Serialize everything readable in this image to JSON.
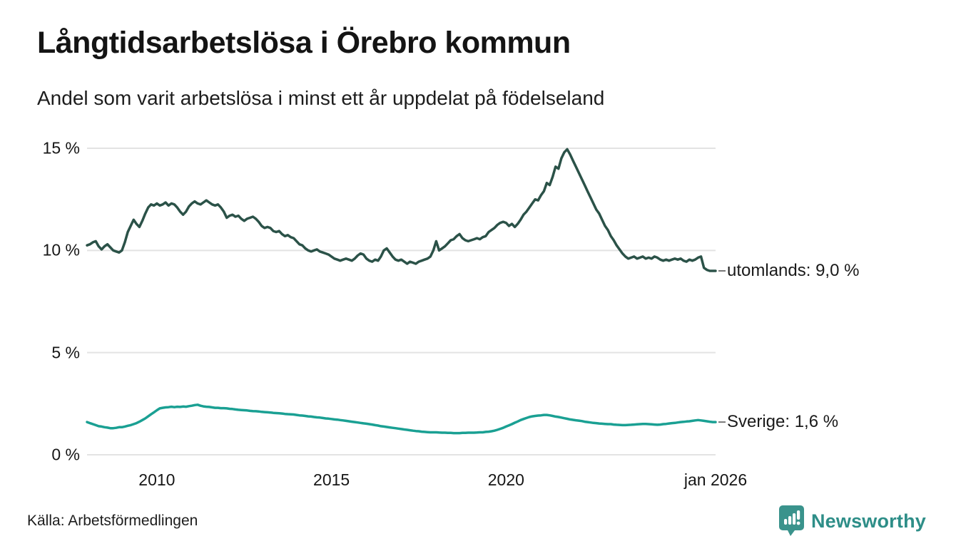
{
  "header": {
    "title": "Långtidsarbetslösa i Örebro kommun",
    "subtitle": "Andel som varit arbetslösa i minst ett år uppdelat på födelseland"
  },
  "footer": {
    "source": "Källa: Arbetsförmedlingen",
    "brand": "Newsworthy"
  },
  "colors": {
    "utomlands_line": "#2b5248",
    "sverige_line": "#1aa093",
    "grid": "#e3e3e3",
    "leader_dash": "#777777",
    "brand_teal": "#2e8e88",
    "logo_teal": "#3a938c"
  },
  "chart_data": {
    "type": "line",
    "title": "Långtidsarbetslösa i Örebro kommun",
    "subtitle": "Andel som varit arbetslösa i minst ett år uppdelat på födelseland",
    "xlabel": "",
    "ylabel": "",
    "x_unit": "year (monthly points)",
    "x_start_year": 2008,
    "x_end_year": 2026,
    "x_step_months": 1,
    "ylim": [
      0,
      15
    ],
    "grid": true,
    "legend_position": "right-end-labels",
    "yticks": [
      {
        "value": 15,
        "label": "15 %"
      },
      {
        "value": 10,
        "label": "10 %"
      },
      {
        "value": 5,
        "label": "5 %"
      },
      {
        "value": 0,
        "label": "0 %"
      }
    ],
    "xticks": [
      {
        "year": 2010,
        "label": "2010"
      },
      {
        "year": 2015,
        "label": "2015"
      },
      {
        "year": 2020,
        "label": "2020"
      },
      {
        "year": 2026,
        "label": "jan 2026"
      }
    ],
    "series": [
      {
        "name": "utomlands",
        "end_label": "utomlands: 9,0 %",
        "last_value": 9.0,
        "color_key": "utomlands_line",
        "values": [
          10.25,
          10.3,
          10.4,
          10.45,
          10.2,
          10.05,
          10.2,
          10.3,
          10.15,
          10.0,
          9.95,
          9.9,
          10.0,
          10.4,
          10.9,
          11.2,
          11.5,
          11.3,
          11.15,
          11.45,
          11.8,
          12.1,
          12.25,
          12.2,
          12.3,
          12.2,
          12.25,
          12.35,
          12.2,
          12.3,
          12.25,
          12.1,
          11.9,
          11.75,
          11.9,
          12.15,
          12.3,
          12.4,
          12.3,
          12.25,
          12.35,
          12.45,
          12.35,
          12.25,
          12.2,
          12.25,
          12.1,
          11.9,
          11.6,
          11.7,
          11.75,
          11.65,
          11.7,
          11.55,
          11.45,
          11.55,
          11.6,
          11.65,
          11.55,
          11.4,
          11.2,
          11.1,
          11.15,
          11.1,
          10.95,
          10.9,
          10.95,
          10.8,
          10.7,
          10.75,
          10.65,
          10.6,
          10.45,
          10.3,
          10.25,
          10.1,
          10.0,
          9.95,
          10.0,
          10.05,
          9.95,
          9.9,
          9.85,
          9.8,
          9.7,
          9.6,
          9.55,
          9.5,
          9.55,
          9.6,
          9.55,
          9.5,
          9.6,
          9.75,
          9.85,
          9.8,
          9.6,
          9.5,
          9.45,
          9.55,
          9.5,
          9.7,
          10.0,
          10.1,
          9.9,
          9.7,
          9.55,
          9.5,
          9.55,
          9.45,
          9.35,
          9.45,
          9.4,
          9.35,
          9.45,
          9.5,
          9.55,
          9.6,
          9.7,
          10.0,
          10.45,
          10.0,
          10.1,
          10.2,
          10.35,
          10.5,
          10.55,
          10.7,
          10.8,
          10.6,
          10.5,
          10.45,
          10.5,
          10.55,
          10.6,
          10.55,
          10.65,
          10.7,
          10.9,
          11.0,
          11.1,
          11.25,
          11.35,
          11.4,
          11.35,
          11.2,
          11.3,
          11.15,
          11.3,
          11.5,
          11.75,
          11.9,
          12.1,
          12.3,
          12.5,
          12.45,
          12.7,
          12.9,
          13.3,
          13.2,
          13.6,
          14.1,
          14.0,
          14.5,
          14.8,
          14.95,
          14.7,
          14.4,
          14.1,
          13.8,
          13.5,
          13.2,
          12.9,
          12.6,
          12.3,
          12.0,
          11.8,
          11.5,
          11.2,
          11.0,
          10.7,
          10.5,
          10.25,
          10.05,
          9.85,
          9.7,
          9.6,
          9.65,
          9.7,
          9.6,
          9.65,
          9.7,
          9.6,
          9.65,
          9.6,
          9.7,
          9.65,
          9.55,
          9.5,
          9.55,
          9.5,
          9.55,
          9.6,
          9.55,
          9.6,
          9.5,
          9.45,
          9.55,
          9.5,
          9.55,
          9.65,
          9.7,
          9.15,
          9.05,
          9.0,
          9.0,
          9.0
        ]
      },
      {
        "name": "Sverige",
        "end_label": "Sverige: 1,6 %",
        "last_value": 1.6,
        "color_key": "sverige_line",
        "values": [
          1.6,
          1.55,
          1.5,
          1.45,
          1.4,
          1.38,
          1.35,
          1.33,
          1.3,
          1.3,
          1.32,
          1.35,
          1.35,
          1.38,
          1.42,
          1.45,
          1.5,
          1.55,
          1.62,
          1.7,
          1.78,
          1.88,
          1.98,
          2.08,
          2.18,
          2.27,
          2.3,
          2.32,
          2.33,
          2.35,
          2.33,
          2.35,
          2.34,
          2.36,
          2.35,
          2.38,
          2.4,
          2.43,
          2.45,
          2.4,
          2.37,
          2.35,
          2.34,
          2.32,
          2.3,
          2.3,
          2.28,
          2.28,
          2.27,
          2.25,
          2.24,
          2.22,
          2.2,
          2.19,
          2.18,
          2.17,
          2.15,
          2.14,
          2.13,
          2.12,
          2.1,
          2.09,
          2.08,
          2.07,
          2.05,
          2.04,
          2.03,
          2.02,
          2.0,
          1.99,
          1.98,
          1.97,
          1.95,
          1.93,
          1.92,
          1.9,
          1.88,
          1.87,
          1.85,
          1.83,
          1.82,
          1.8,
          1.78,
          1.77,
          1.75,
          1.73,
          1.72,
          1.7,
          1.68,
          1.66,
          1.64,
          1.62,
          1.6,
          1.58,
          1.56,
          1.54,
          1.52,
          1.5,
          1.48,
          1.45,
          1.43,
          1.4,
          1.38,
          1.36,
          1.34,
          1.32,
          1.3,
          1.28,
          1.26,
          1.24,
          1.22,
          1.2,
          1.18,
          1.16,
          1.15,
          1.13,
          1.12,
          1.11,
          1.1,
          1.1,
          1.1,
          1.09,
          1.08,
          1.08,
          1.07,
          1.07,
          1.06,
          1.06,
          1.06,
          1.07,
          1.07,
          1.08,
          1.08,
          1.08,
          1.09,
          1.1,
          1.1,
          1.12,
          1.13,
          1.15,
          1.18,
          1.22,
          1.27,
          1.32,
          1.38,
          1.44,
          1.5,
          1.57,
          1.63,
          1.7,
          1.75,
          1.8,
          1.85,
          1.88,
          1.9,
          1.92,
          1.93,
          1.95,
          1.95,
          1.93,
          1.9,
          1.87,
          1.85,
          1.82,
          1.79,
          1.76,
          1.73,
          1.71,
          1.69,
          1.67,
          1.65,
          1.62,
          1.6,
          1.58,
          1.56,
          1.55,
          1.53,
          1.52,
          1.51,
          1.5,
          1.5,
          1.48,
          1.47,
          1.46,
          1.45,
          1.45,
          1.46,
          1.47,
          1.48,
          1.49,
          1.5,
          1.51,
          1.51,
          1.5,
          1.49,
          1.48,
          1.47,
          1.48,
          1.5,
          1.51,
          1.53,
          1.55,
          1.56,
          1.58,
          1.6,
          1.61,
          1.63,
          1.64,
          1.66,
          1.68,
          1.7,
          1.68,
          1.66,
          1.64,
          1.62,
          1.6,
          1.6
        ]
      }
    ]
  }
}
